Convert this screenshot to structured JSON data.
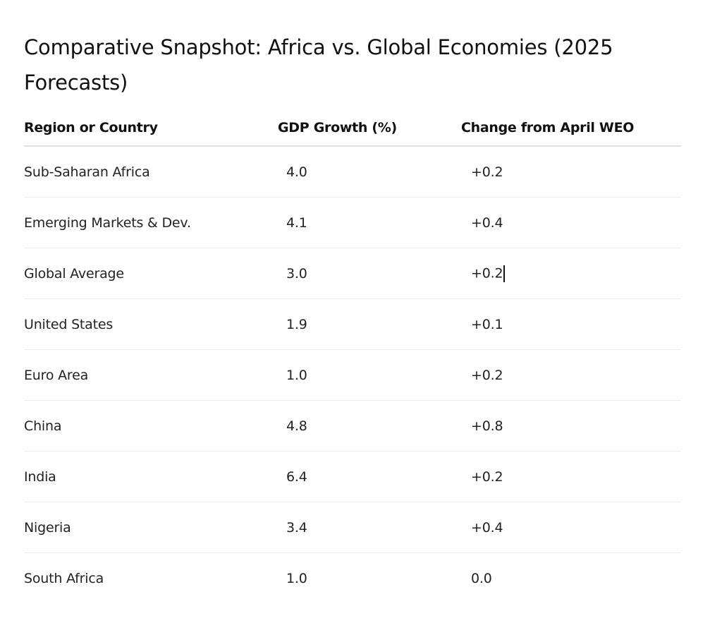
{
  "document": {
    "title": "Comparative Snapshot: Africa vs. Global Economies (2025 Forecasts)"
  },
  "table": {
    "headers": {
      "region": "Region or Country",
      "gdp_growth": "GDP Growth (%)",
      "change": "Change from April WEO"
    },
    "rows": [
      {
        "region": "Sub-Saharan Africa",
        "gdp_growth": "4.0",
        "change": "+0.2"
      },
      {
        "region": "Emerging Markets & Dev.",
        "gdp_growth": "4.1",
        "change": "+0.4"
      },
      {
        "region": "Global Average",
        "gdp_growth": "3.0",
        "change": "+0.2"
      },
      {
        "region": "United States",
        "gdp_growth": "1.9",
        "change": "+0.1"
      },
      {
        "region": "Euro Area",
        "gdp_growth": "1.0",
        "change": "+0.2"
      },
      {
        "region": "China",
        "gdp_growth": "4.8",
        "change": "+0.8"
      },
      {
        "region": "India",
        "gdp_growth": "6.4",
        "change": "+0.2"
      },
      {
        "region": "Nigeria",
        "gdp_growth": "3.4",
        "change": "+0.4"
      },
      {
        "region": "South Africa",
        "gdp_growth": "1.0",
        "change": "0.0"
      }
    ]
  }
}
